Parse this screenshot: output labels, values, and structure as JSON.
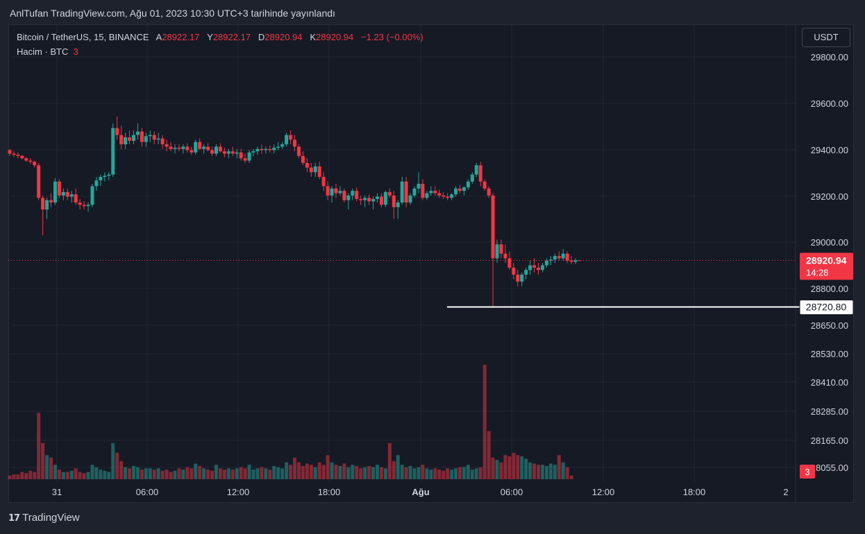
{
  "header": {
    "published_line": "AnlTufan TradingView.com, Ağu 01, 2023 10:30 UTC+3 tarihinde yayınlandı"
  },
  "legend": {
    "symbol": "Bitcoin / TetherUS, 15, BINANCE",
    "open_label": "A",
    "open": "28922.17",
    "high_label": "Y",
    "high": "28922.17",
    "low_label": "D",
    "low": "28920.94",
    "close_label": "K",
    "close": "28920.94",
    "change": "−1.23 (−0.00%)",
    "volume_label": "Hacim · BTC",
    "volume_value": "3"
  },
  "currency_button": "USDT",
  "footer": {
    "brand": "TradingView",
    "brand_mark": "17"
  },
  "colors": {
    "up": "#26a69a",
    "down": "#f23645",
    "background": "#161a25",
    "grid": "#232733",
    "text": "#d1d4dc"
  },
  "chart_data": {
    "type": "candlestick",
    "title": "Bitcoin / TetherUS, 15, BINANCE",
    "price_axis_ticks": [
      "29800.00",
      "29600.00",
      "29400.00",
      "29200.00",
      "29000.00",
      "28800.00",
      "28650.00",
      "28530.00",
      "28410.00",
      "28285.00",
      "28165.00",
      "28055.00"
    ],
    "time_axis_ticks": [
      "31",
      "06:00",
      "12:00",
      "18:00",
      "Ağu",
      "06:00",
      "12:00",
      "18:00",
      "2"
    ],
    "price_range": [
      28720,
      29540
    ],
    "current_price_label": "28920.94",
    "current_countdown": "14:28",
    "horizontal_line_label": "28720.80",
    "volume_label": "3",
    "candles": [
      [
        29395,
        29400,
        29370,
        29380
      ],
      [
        29380,
        29390,
        29365,
        29375
      ],
      [
        29375,
        29385,
        29360,
        29370
      ],
      [
        29370,
        29375,
        29355,
        29360
      ],
      [
        29360,
        29365,
        29345,
        29350
      ],
      [
        29350,
        29360,
        29335,
        29345
      ],
      [
        29345,
        29350,
        29320,
        29330
      ],
      [
        29330,
        29340,
        29180,
        29190
      ],
      [
        29190,
        29200,
        29030,
        29140
      ],
      [
        29140,
        29190,
        29100,
        29180
      ],
      [
        29180,
        29210,
        29150,
        29170
      ],
      [
        29170,
        29275,
        29160,
        29260
      ],
      [
        29260,
        29270,
        29190,
        29200
      ],
      [
        29200,
        29230,
        29180,
        29215
      ],
      [
        29215,
        29230,
        29180,
        29195
      ],
      [
        29195,
        29220,
        29170,
        29205
      ],
      [
        29205,
        29230,
        29160,
        29170
      ],
      [
        29170,
        29185,
        29140,
        29160
      ],
      [
        29160,
        29175,
        29140,
        29155
      ],
      [
        29155,
        29170,
        29130,
        29160
      ],
      [
        29160,
        29250,
        29150,
        29240
      ],
      [
        29240,
        29280,
        29220,
        29265
      ],
      [
        29265,
        29290,
        29240,
        29280
      ],
      [
        29280,
        29300,
        29260,
        29285
      ],
      [
        29285,
        29300,
        29265,
        29290
      ],
      [
        29290,
        29510,
        29280,
        29490
      ],
      [
        29490,
        29540,
        29440,
        29460
      ],
      [
        29460,
        29500,
        29400,
        29420
      ],
      [
        29420,
        29470,
        29400,
        29450
      ],
      [
        29450,
        29480,
        29420,
        29435
      ],
      [
        29435,
        29480,
        29420,
        29460
      ],
      [
        29460,
        29510,
        29440,
        29475
      ],
      [
        29475,
        29490,
        29410,
        29430
      ],
      [
        29430,
        29470,
        29410,
        29455
      ],
      [
        29455,
        29480,
        29430,
        29460
      ],
      [
        29460,
        29475,
        29420,
        29440
      ],
      [
        29440,
        29470,
        29420,
        29445
      ],
      [
        29445,
        29460,
        29400,
        29420
      ],
      [
        29420,
        29440,
        29390,
        29410
      ],
      [
        29410,
        29430,
        29390,
        29400
      ],
      [
        29400,
        29420,
        29380,
        29405
      ],
      [
        29405,
        29420,
        29390,
        29400
      ],
      [
        29400,
        29420,
        29380,
        29410
      ],
      [
        29410,
        29425,
        29385,
        29395
      ],
      [
        29395,
        29410,
        29375,
        29385
      ],
      [
        29385,
        29440,
        29375,
        29430
      ],
      [
        29430,
        29445,
        29395,
        29400
      ],
      [
        29400,
        29420,
        29380,
        29410
      ],
      [
        29410,
        29425,
        29390,
        29395
      ],
      [
        29395,
        29410,
        29370,
        29380
      ],
      [
        29380,
        29420,
        29370,
        29410
      ],
      [
        29410,
        29425,
        29385,
        29390
      ],
      [
        29390,
        29405,
        29365,
        29380
      ],
      [
        29380,
        29400,
        29360,
        29390
      ],
      [
        29390,
        29410,
        29370,
        29380
      ],
      [
        29380,
        29400,
        29360,
        29385
      ],
      [
        29385,
        29400,
        29350,
        29360
      ],
      [
        29360,
        29380,
        29340,
        29350
      ],
      [
        29350,
        29395,
        29340,
        29385
      ],
      [
        29385,
        29400,
        29370,
        29390
      ],
      [
        29390,
        29410,
        29375,
        29400
      ],
      [
        29400,
        29420,
        29380,
        29395
      ],
      [
        29395,
        29410,
        29380,
        29400
      ],
      [
        29400,
        29415,
        29385,
        29395
      ],
      [
        29395,
        29420,
        29380,
        29405
      ],
      [
        29405,
        29430,
        29395,
        29410
      ],
      [
        29410,
        29430,
        29400,
        29420
      ],
      [
        29420,
        29470,
        29410,
        29460
      ],
      [
        29460,
        29480,
        29420,
        29440
      ],
      [
        29440,
        29460,
        29390,
        29410
      ],
      [
        29410,
        29420,
        29360,
        29370
      ],
      [
        29370,
        29390,
        29330,
        29340
      ],
      [
        29340,
        29360,
        29300,
        29320
      ],
      [
        29320,
        29340,
        29280,
        29300
      ],
      [
        29300,
        29340,
        29280,
        29325
      ],
      [
        29325,
        29345,
        29270,
        29280
      ],
      [
        29280,
        29300,
        29220,
        29240
      ],
      [
        29240,
        29260,
        29180,
        29200
      ],
      [
        29200,
        29240,
        29170,
        29230
      ],
      [
        29230,
        29250,
        29190,
        29210
      ],
      [
        29210,
        29240,
        29200,
        29220
      ],
      [
        29220,
        29230,
        29170,
        29180
      ],
      [
        29180,
        29210,
        29140,
        29200
      ],
      [
        29200,
        29230,
        29180,
        29220
      ],
      [
        29220,
        29235,
        29175,
        29185
      ],
      [
        29185,
        29200,
        29160,
        29180
      ],
      [
        29180,
        29200,
        29150,
        29190
      ],
      [
        29190,
        29205,
        29160,
        29175
      ],
      [
        29175,
        29195,
        29140,
        29185
      ],
      [
        29185,
        29210,
        29170,
        29195
      ],
      [
        29195,
        29210,
        29150,
        29160
      ],
      [
        29160,
        29220,
        29150,
        29215
      ],
      [
        29215,
        29230,
        29190,
        29200
      ],
      [
        29200,
        29220,
        29100,
        29150
      ],
      [
        29150,
        29180,
        29100,
        29170
      ],
      [
        29170,
        29280,
        29160,
        29260
      ],
      [
        29260,
        29280,
        29150,
        29170
      ],
      [
        29170,
        29210,
        29160,
        29200
      ],
      [
        29200,
        29240,
        29190,
        29230
      ],
      [
        29230,
        29300,
        29210,
        29250
      ],
      [
        29250,
        29270,
        29180,
        29190
      ],
      [
        29190,
        29220,
        29180,
        29210
      ],
      [
        29210,
        29240,
        29200,
        29220
      ],
      [
        29220,
        29240,
        29200,
        29210
      ],
      [
        29210,
        29225,
        29190,
        29200
      ],
      [
        29200,
        29215,
        29185,
        29195
      ],
      [
        29195,
        29210,
        29180,
        29190
      ],
      [
        29190,
        29210,
        29180,
        29205
      ],
      [
        29205,
        29240,
        29195,
        29230
      ],
      [
        29230,
        29245,
        29210,
        29220
      ],
      [
        29220,
        29240,
        29200,
        29235
      ],
      [
        29235,
        29270,
        29225,
        29260
      ],
      [
        29260,
        29300,
        29250,
        29290
      ],
      [
        29290,
        29340,
        29280,
        29330
      ],
      [
        29330,
        29345,
        29240,
        29260
      ],
      [
        29260,
        29270,
        29220,
        29230
      ],
      [
        29230,
        29240,
        29190,
        29200
      ],
      [
        29200,
        29210,
        28720,
        28930
      ],
      [
        28930,
        29010,
        28910,
        28990
      ],
      [
        28990,
        29010,
        28930,
        28950
      ],
      [
        28950,
        28990,
        28910,
        28930
      ],
      [
        28930,
        28960,
        28880,
        28890
      ],
      [
        28890,
        28910,
        28840,
        28860
      ],
      [
        28860,
        28880,
        28810,
        28830
      ],
      [
        28830,
        28870,
        28810,
        28860
      ],
      [
        28860,
        28890,
        28840,
        28880
      ],
      [
        28880,
        28920,
        28860,
        28900
      ],
      [
        28900,
        28930,
        28870,
        28890
      ],
      [
        28890,
        28910,
        28860,
        28880
      ],
      [
        28880,
        28910,
        28870,
        28900
      ],
      [
        28900,
        28930,
        28890,
        28920
      ],
      [
        28920,
        28940,
        28900,
        28925
      ],
      [
        28925,
        28950,
        28910,
        28940
      ],
      [
        28940,
        28960,
        28920,
        28930
      ],
      [
        28930,
        28970,
        28920,
        28950
      ],
      [
        28950,
        28960,
        28910,
        28920
      ],
      [
        28920,
        28940,
        28905,
        28915
      ],
      [
        28915,
        28930,
        28905,
        28922
      ],
      [
        28922,
        28922,
        28920,
        28921
      ]
    ],
    "volumes": [
      3,
      4,
      4,
      6,
      5,
      7,
      6,
      55,
      30,
      20,
      18,
      12,
      8,
      6,
      6,
      7,
      9,
      6,
      5,
      6,
      12,
      10,
      8,
      7,
      6,
      30,
      22,
      15,
      10,
      9,
      11,
      10,
      8,
      9,
      9,
      8,
      9,
      7,
      8,
      6,
      7,
      9,
      8,
      10,
      9,
      13,
      11,
      9,
      8,
      7,
      12,
      9,
      8,
      9,
      8,
      9,
      10,
      9,
      12,
      8,
      9,
      10,
      9,
      8,
      11,
      10,
      9,
      14,
      12,
      18,
      14,
      11,
      13,
      12,
      10,
      14,
      12,
      20,
      14,
      12,
      11,
      13,
      10,
      12,
      11,
      9,
      10,
      11,
      10,
      12,
      10,
      9,
      30,
      15,
      20,
      12,
      10,
      11,
      9,
      10,
      12,
      9,
      8,
      9,
      8,
      7,
      9,
      8,
      9,
      10,
      10,
      12,
      8,
      9,
      10,
      95,
      40,
      18,
      16,
      14,
      20,
      19,
      22,
      20,
      19,
      17,
      14,
      13,
      12,
      12,
      11,
      13,
      12,
      20,
      14,
      10,
      3
    ]
  }
}
